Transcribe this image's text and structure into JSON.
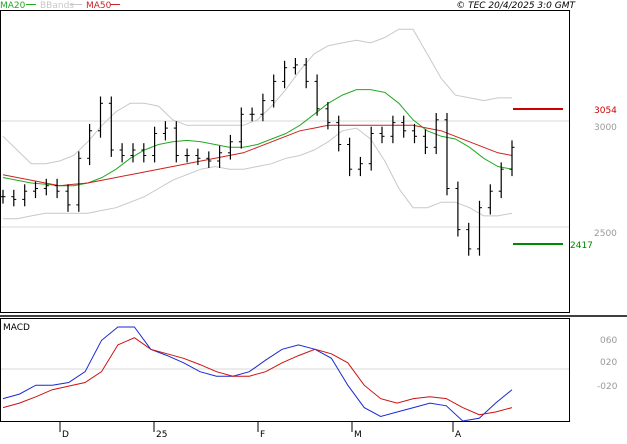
{
  "legend": {
    "ma20": {
      "label": "MA20",
      "color": "#22aa22"
    },
    "bbands": {
      "label": "BBands",
      "color": "#c8c8c8"
    },
    "ma50": {
      "label": "MA50",
      "color": "#cc2222"
    }
  },
  "copyright": "© TEC 20/4/2025 3:0 GMT",
  "macd_title": "MACD",
  "price_axis": {
    "ticks": [
      "3000",
      "2500"
    ]
  },
  "macd_axis": {
    "ticks": [
      "060",
      "020",
      "-020"
    ]
  },
  "x_ticks": [
    "D",
    "25",
    "F",
    "M",
    "A"
  ],
  "levels": {
    "resistance": {
      "label": "3054",
      "value": 3054,
      "color": "#cc0000"
    },
    "support": {
      "label": "2417",
      "value": 2417,
      "color": "#008800"
    }
  },
  "chart_data": [
    {
      "type": "line",
      "title": "",
      "y_range": [
        2200,
        3300
      ],
      "grid_lines": [
        3000,
        2500
      ],
      "series": [
        {
          "name": "MA20",
          "values": [
            2690,
            2680,
            2670,
            2665,
            2660,
            2660,
            2670,
            2690,
            2720,
            2760,
            2790,
            2810,
            2820,
            2825,
            2820,
            2810,
            2800,
            2800,
            2810,
            2830,
            2850,
            2880,
            2920,
            2960,
            2990,
            3010,
            3010,
            3000,
            2960,
            2900,
            2860,
            2840,
            2830,
            2800,
            2760,
            2730,
            2720
          ]
        },
        {
          "name": "MA50",
          "values": [
            2700,
            2690,
            2680,
            2670,
            2660,
            2665,
            2670,
            2680,
            2690,
            2700,
            2710,
            2720,
            2730,
            2740,
            2750,
            2760,
            2770,
            2780,
            2800,
            2820,
            2840,
            2860,
            2870,
            2880,
            2880,
            2880,
            2880,
            2880,
            2880,
            2880,
            2870,
            2860,
            2840,
            2820,
            2800,
            2780,
            2770
          ]
        },
        {
          "name": "BBands upper",
          "values": [
            2840,
            2790,
            2740,
            2740,
            2750,
            2770,
            2820,
            2880,
            2930,
            2960,
            2960,
            2950,
            2900,
            2880,
            2880,
            2880,
            2880,
            2880,
            2900,
            2950,
            3010,
            3080,
            3140,
            3170,
            3180,
            3190,
            3180,
            3200,
            3230,
            3230,
            3140,
            3050,
            2990,
            2980,
            2970,
            2980,
            2980
          ]
        },
        {
          "name": "BBands lower",
          "values": [
            2540,
            2540,
            2550,
            2560,
            2560,
            2560,
            2560,
            2570,
            2580,
            2600,
            2620,
            2650,
            2680,
            2700,
            2720,
            2730,
            2720,
            2720,
            2730,
            2740,
            2760,
            2770,
            2790,
            2820,
            2860,
            2870,
            2830,
            2750,
            2650,
            2580,
            2580,
            2600,
            2600,
            2580,
            2550,
            2550,
            2560
          ]
        },
        {
          "name": "Price",
          "values": [
            2620,
            2610,
            2640,
            2650,
            2660,
            2640,
            2590,
            2760,
            2860,
            2960,
            2790,
            2770,
            2790,
            2770,
            2850,
            2870,
            2770,
            2770,
            2760,
            2750,
            2780,
            2820,
            2920,
            2920,
            2970,
            3040,
            3090,
            3100,
            3040,
            2940,
            2890,
            2810,
            2720,
            2740,
            2850,
            2840,
            2890,
            2860,
            2840,
            2800,
            2900,
            2650,
            2500,
            2430,
            2580,
            2640,
            2720,
            2800
          ]
        }
      ]
    },
    {
      "type": "line",
      "title": "MACD",
      "y_range": [
        -35,
        80
      ],
      "grid_lines": [
        20
      ],
      "series": [
        {
          "name": "",
          "values": [
            -10,
            -5,
            5,
            5,
            8,
            20,
            55,
            70,
            70,
            45,
            38,
            30,
            20,
            15,
            15,
            20,
            33,
            45,
            50,
            45,
            35,
            5,
            -20,
            -30,
            -25,
            -20,
            -15,
            -18,
            -35,
            -32,
            -15,
            0
          ]
        },
        {
          "name": "",
          "values": [
            -20,
            -15,
            -8,
            0,
            4,
            8,
            20,
            50,
            58,
            45,
            40,
            35,
            28,
            20,
            15,
            15,
            20,
            30,
            38,
            45,
            40,
            30,
            5,
            -10,
            -15,
            -10,
            -8,
            -10,
            -20,
            -28,
            -25,
            -20
          ]
        }
      ]
    }
  ]
}
